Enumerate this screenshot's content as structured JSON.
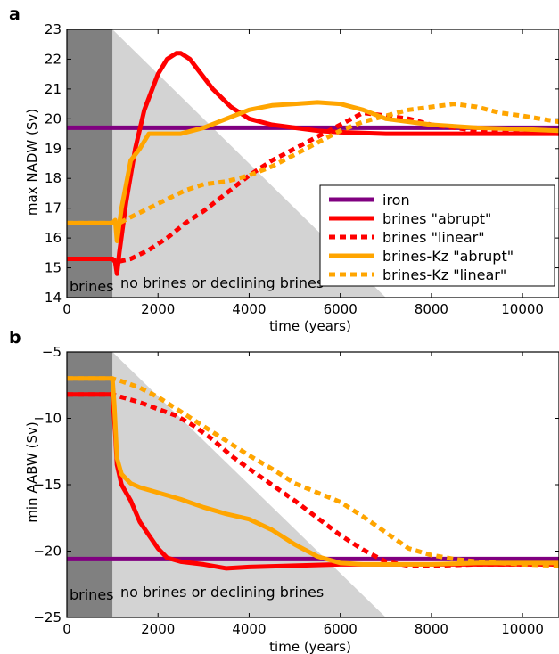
{
  "colors": {
    "iron": "#800080",
    "brines": "#ff0000",
    "brinesKz": "#ffa500",
    "shade_dark": "#808080",
    "shade_light": "#d3d3d3"
  },
  "chart_data": [
    {
      "type": "line",
      "panel_label": "a",
      "xlabel": "time (years)",
      "ylabel": "max NADW (Sv)",
      "xlim": [
        0,
        10800
      ],
      "ylim": [
        14,
        23
      ],
      "xticks": [
        0,
        2000,
        4000,
        6000,
        8000,
        10000
      ],
      "yticks": [
        14,
        15,
        16,
        17,
        18,
        19,
        20,
        21,
        22,
        23
      ],
      "shading": {
        "brines_period": [
          0,
          1000
        ],
        "declining_triangle": {
          "x_start": 1000,
          "x_end": 7000
        }
      },
      "annotations": [
        "brines",
        "no brines or declining brines"
      ],
      "legend": {
        "placement": "lower-right",
        "entries": [
          "iron",
          "brines \"abrupt\"",
          "brines \"linear\"",
          "brines-Kz \"abrupt\"",
          "brines-Kz \"linear\""
        ]
      },
      "series": [
        {
          "name": "iron",
          "color_key": "iron",
          "style": "solid",
          "x": [
            0,
            10800
          ],
          "y": [
            19.7,
            19.7
          ]
        },
        {
          "name": "brines \"abrupt\"",
          "color_key": "brines",
          "style": "solid",
          "x": [
            0,
            1000,
            1060,
            1100,
            1150,
            1300,
            1500,
            1700,
            2000,
            2200,
            2400,
            2500,
            2700,
            2900,
            3200,
            3600,
            4000,
            4500,
            5000,
            5500,
            6000,
            7000,
            8000,
            9000,
            10000,
            10800
          ],
          "y": [
            15.3,
            15.3,
            15.2,
            14.8,
            15.5,
            17.2,
            19.0,
            20.3,
            21.5,
            22.0,
            22.2,
            22.2,
            22.0,
            21.6,
            21.0,
            20.4,
            20.0,
            19.8,
            19.7,
            19.6,
            19.55,
            19.5,
            19.5,
            19.5,
            19.5,
            19.5
          ]
        },
        {
          "name": "brines \"linear\"",
          "color_key": "brines",
          "style": "dashed",
          "x": [
            0,
            1000,
            1100,
            1400,
            1800,
            2200,
            2600,
            3000,
            3500,
            4000,
            4500,
            5000,
            5500,
            6000,
            6500,
            7000,
            7500,
            8000,
            9000,
            10000,
            10800
          ],
          "y": [
            15.3,
            15.3,
            15.2,
            15.3,
            15.6,
            16.0,
            16.5,
            16.9,
            17.5,
            18.1,
            18.6,
            19.0,
            19.4,
            19.8,
            20.2,
            20.1,
            20.0,
            19.8,
            19.6,
            19.55,
            19.5
          ]
        },
        {
          "name": "brines-Kz \"abrupt\"",
          "color_key": "brinesKz",
          "style": "solid",
          "x": [
            0,
            1000,
            1060,
            1100,
            1200,
            1400,
            1600,
            1800,
            2000,
            2500,
            3000,
            3500,
            4000,
            4500,
            5000,
            5500,
            6000,
            6500,
            7000,
            8000,
            9000,
            10000,
            10800
          ],
          "y": [
            16.5,
            16.5,
            16.6,
            15.9,
            17.0,
            18.6,
            19.0,
            19.5,
            19.5,
            19.5,
            19.7,
            20.0,
            20.3,
            20.45,
            20.5,
            20.55,
            20.5,
            20.3,
            20.0,
            19.8,
            19.7,
            19.65,
            19.6
          ]
        },
        {
          "name": "brines-Kz \"linear\"",
          "color_key": "brinesKz",
          "style": "dashed",
          "x": [
            0,
            1000,
            1150,
            1400,
            1800,
            2200,
            2600,
            3000,
            3500,
            4000,
            4500,
            5000,
            5500,
            6000,
            6500,
            7000,
            7500,
            8000,
            8500,
            9000,
            9500,
            10000,
            10800
          ],
          "y": [
            16.5,
            16.5,
            16.5,
            16.7,
            17.0,
            17.3,
            17.6,
            17.8,
            17.9,
            18.1,
            18.4,
            18.8,
            19.2,
            19.6,
            19.9,
            20.1,
            20.3,
            20.4,
            20.5,
            20.4,
            20.2,
            20.1,
            19.9
          ]
        }
      ]
    },
    {
      "type": "line",
      "panel_label": "b",
      "xlabel": "time (years)",
      "ylabel": "min AABW (Sv)",
      "xlim": [
        0,
        10800
      ],
      "ylim": [
        -25,
        -5
      ],
      "xticks": [
        0,
        2000,
        4000,
        6000,
        8000,
        10000
      ],
      "yticks": [
        -25,
        -20,
        -15,
        -10,
        -5
      ],
      "shading": {
        "brines_period": [
          0,
          1000
        ],
        "declining_triangle": {
          "x_start": 1000,
          "x_end": 7000
        }
      },
      "annotations": [
        "brines",
        "no brines or declining brines"
      ],
      "series": [
        {
          "name": "iron",
          "color_key": "iron",
          "style": "solid",
          "x": [
            0,
            10800
          ],
          "y": [
            -20.6,
            -20.6
          ]
        },
        {
          "name": "brines \"abrupt\"",
          "color_key": "brines",
          "style": "solid",
          "x": [
            0,
            1000,
            1060,
            1100,
            1200,
            1400,
            1600,
            1800,
            2000,
            2200,
            2500,
            3000,
            3500,
            4000,
            5000,
            6000,
            7000,
            8000,
            9000,
            10000,
            10800
          ],
          "y": [
            -8.2,
            -8.2,
            -11.0,
            -13.5,
            -15.0,
            -16.2,
            -17.8,
            -18.8,
            -19.8,
            -20.5,
            -20.8,
            -21.0,
            -21.3,
            -21.2,
            -21.1,
            -21.0,
            -21.0,
            -21.0,
            -21.0,
            -21.0,
            -21.0
          ]
        },
        {
          "name": "brines \"linear\"",
          "color_key": "brines",
          "style": "dashed",
          "x": [
            0,
            1000,
            1200,
            1600,
            2000,
            2400,
            2800,
            3200,
            3600,
            4000,
            4500,
            5000,
            5500,
            6000,
            6500,
            7000,
            7500,
            8000,
            9000,
            10000,
            10800
          ],
          "y": [
            -8.2,
            -8.2,
            -8.4,
            -8.8,
            -9.3,
            -9.8,
            -10.6,
            -11.6,
            -12.8,
            -13.8,
            -15.0,
            -16.2,
            -17.5,
            -18.8,
            -19.9,
            -20.8,
            -21.1,
            -21.1,
            -21.0,
            -21.0,
            -21.0
          ]
        },
        {
          "name": "brines-Kz \"abrupt\"",
          "color_key": "brinesKz",
          "style": "solid",
          "x": [
            0,
            1000,
            1040,
            1100,
            1200,
            1400,
            1600,
            2000,
            2500,
            3000,
            3500,
            4000,
            4500,
            5000,
            5500,
            6000,
            6500,
            7000,
            8000,
            9000,
            10000,
            10800
          ],
          "y": [
            -7.0,
            -7.0,
            -9.0,
            -13.0,
            -14.2,
            -14.9,
            -15.2,
            -15.6,
            -16.1,
            -16.7,
            -17.2,
            -17.6,
            -18.4,
            -19.5,
            -20.4,
            -20.9,
            -21.0,
            -21.0,
            -21.0,
            -20.9,
            -20.9,
            -20.9
          ]
        },
        {
          "name": "brines-Kz \"linear\"",
          "color_key": "brinesKz",
          "style": "dashed",
          "x": [
            0,
            1000,
            1200,
            1600,
            2000,
            2500,
            3000,
            3500,
            4000,
            4500,
            5000,
            5500,
            6000,
            6500,
            7000,
            7500,
            8000,
            8500,
            9000,
            10000,
            10800
          ],
          "y": [
            -7.0,
            -7.0,
            -7.2,
            -7.7,
            -8.4,
            -9.5,
            -10.6,
            -11.7,
            -12.8,
            -13.8,
            -14.9,
            -15.6,
            -16.3,
            -17.4,
            -18.6,
            -19.8,
            -20.3,
            -20.6,
            -20.8,
            -21.0,
            -21.1
          ]
        }
      ]
    }
  ]
}
